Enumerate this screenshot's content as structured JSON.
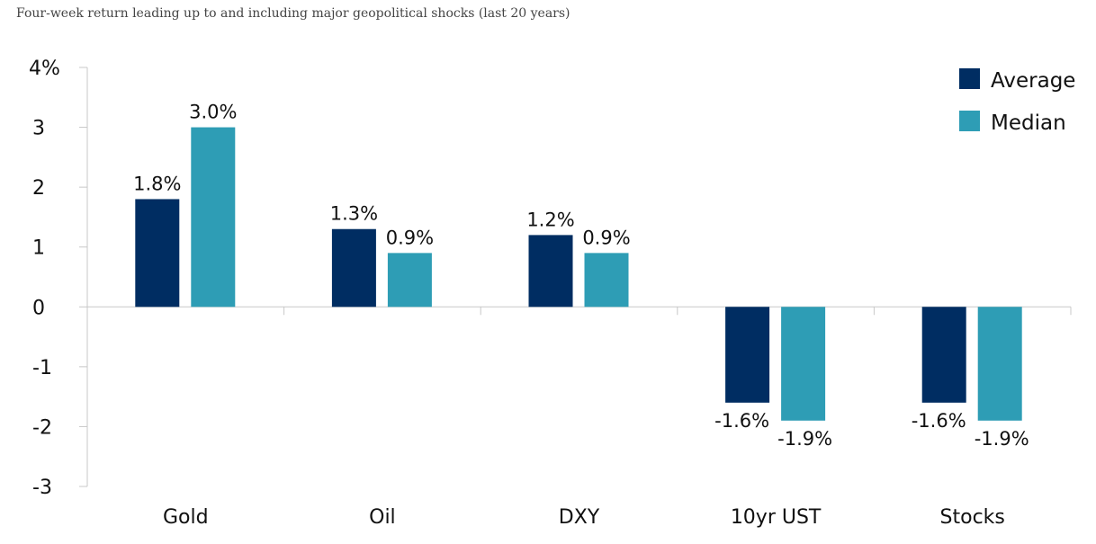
{
  "chart_data": {
    "type": "bar",
    "title": "Four-week return leading up to and including major geopolitical shocks (last 20 years)",
    "xlabel": "",
    "ylabel": "",
    "categories": [
      "Gold",
      "Oil",
      "DXY",
      "10yr UST",
      "Stocks"
    ],
    "series": [
      {
        "name": "Average",
        "color": "#002d62",
        "values": [
          1.8,
          1.3,
          1.2,
          -1.6,
          -1.6
        ],
        "labels": [
          "1.8%",
          "1.3%",
          "1.2%",
          "-1.6%",
          "-1.6%"
        ]
      },
      {
        "name": "Median",
        "color": "#2e9db5",
        "values": [
          3.0,
          0.9,
          0.9,
          -1.9,
          -1.9
        ],
        "labels": [
          "3.0%",
          "0.9%",
          "0.9%",
          "-1.9%",
          "-1.9%"
        ]
      }
    ],
    "ylim": [
      -3,
      4
    ],
    "yticks": [
      4,
      3,
      2,
      1,
      0,
      -1,
      -2,
      -3
    ],
    "ytick_labels": [
      "4%",
      "3",
      "2",
      "1",
      "0",
      "-1",
      "-2",
      "-3"
    ],
    "grid": false,
    "legend": "top-right"
  }
}
